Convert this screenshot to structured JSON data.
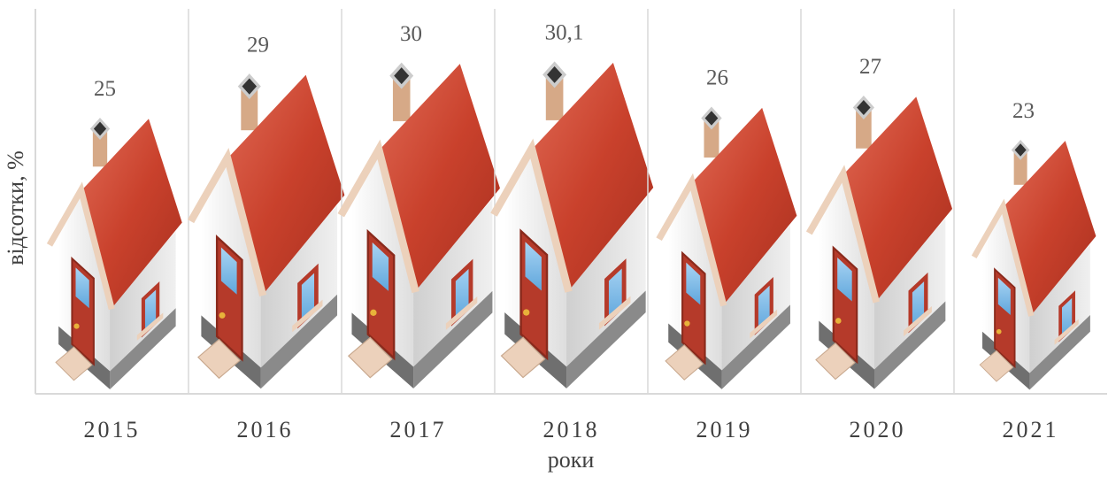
{
  "chart_data": {
    "type": "pictogram-bar",
    "x_label": "роки",
    "y_label": "відсотки, %",
    "categories": [
      "2015",
      "2016",
      "2017",
      "2018",
      "2019",
      "2020",
      "2021"
    ],
    "values": [
      25,
      29,
      30,
      30.1,
      26,
      27,
      23
    ],
    "value_labels": [
      "25",
      "29",
      "30",
      "30,1",
      "26",
      "27",
      "23"
    ],
    "ylim": [
      0,
      35
    ]
  }
}
